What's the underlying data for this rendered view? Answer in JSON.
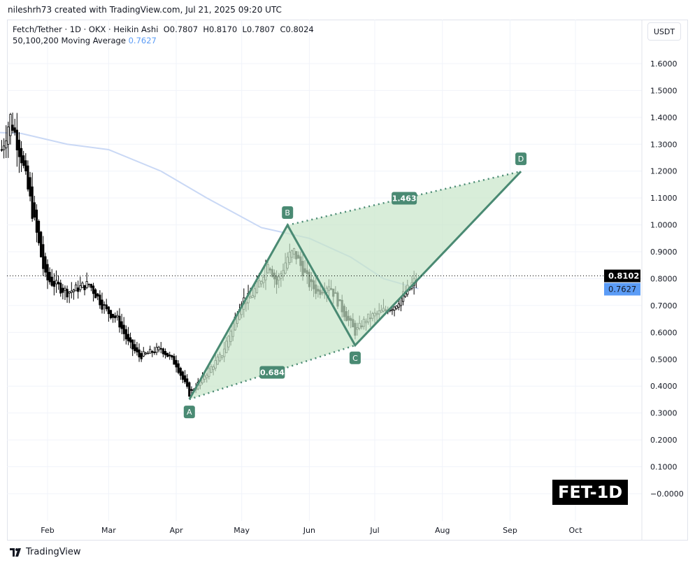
{
  "header": {
    "credit": "nileshrh73 created with TradingView.com, Jul 21, 2025 09:20 UTC"
  },
  "legend": {
    "symbol": "Fetch/Tether · 1D · OKX · Heikin Ashi  O0.7807  H0.8170  L0.7807  C0.8024",
    "ma_label": "50,100,200 Moving Average",
    "ma_value": "0.7627"
  },
  "axis": {
    "unit": "USDT"
  },
  "badge": "FET-1D",
  "footer": {
    "brand": "TradingView"
  },
  "colors": {
    "up": "#000000",
    "ma": "#c9d8f5",
    "pattern": "#4a8a73",
    "fill": "#c8e6c9",
    "ma_tag": "#5b9cf6"
  },
  "chart_data": {
    "type": "candlestick",
    "y_ticks": [
      "1.6000",
      "1.5000",
      "1.4000",
      "1.3000",
      "1.2000",
      "1.1000",
      "1.0000",
      "0.9000",
      "0.8000",
      "0.7000",
      "0.6000",
      "0.5000",
      "0.4000",
      "0.3000",
      "0.2000",
      "0.1000",
      "−0.0000"
    ],
    "y_tick_values": [
      1.6,
      1.5,
      1.4,
      1.3,
      1.2,
      1.1,
      1.0,
      0.9,
      0.8,
      0.7,
      0.6,
      0.5,
      0.4,
      0.3,
      0.2,
      0.1,
      0.0
    ],
    "x_ticks": [
      {
        "label": "Feb",
        "date": "2025-02-01"
      },
      {
        "label": "Mar",
        "date": "2025-03-01"
      },
      {
        "label": "Apr",
        "date": "2025-04-01"
      },
      {
        "label": "May",
        "date": "2025-05-01"
      },
      {
        "label": "Jun",
        "date": "2025-06-01"
      },
      {
        "label": "Jul",
        "date": "2025-07-01"
      },
      {
        "label": "Aug",
        "date": "2025-08-01"
      },
      {
        "label": "Sep",
        "date": "2025-09-01"
      },
      {
        "label": "Oct",
        "date": "2025-10-01"
      }
    ],
    "price_path": [
      [
        "2025-01-11",
        1.28
      ],
      [
        "2025-01-15",
        1.4
      ],
      [
        "2025-01-20",
        1.25
      ],
      [
        "2025-01-25",
        1.05
      ],
      [
        "2025-01-31",
        0.8
      ],
      [
        "2025-02-10",
        0.75
      ],
      [
        "2025-02-20",
        0.78
      ],
      [
        "2025-02-28",
        0.68
      ],
      [
        "2025-03-05",
        0.65
      ],
      [
        "2025-03-10",
        0.56
      ],
      [
        "2025-03-15",
        0.51
      ],
      [
        "2025-03-25",
        0.54
      ],
      [
        "2025-04-01",
        0.48
      ],
      [
        "2025-04-07",
        0.37
      ],
      [
        "2025-04-15",
        0.45
      ],
      [
        "2025-04-22",
        0.52
      ],
      [
        "2025-05-01",
        0.72
      ],
      [
        "2025-05-05",
        0.73
      ],
      [
        "2025-05-10",
        0.8
      ],
      [
        "2025-05-13",
        0.87
      ],
      [
        "2025-05-17",
        0.78
      ],
      [
        "2025-05-22",
        0.88
      ],
      [
        "2025-05-25",
        0.9
      ],
      [
        "2025-06-01",
        0.78
      ],
      [
        "2025-06-05",
        0.75
      ],
      [
        "2025-06-10",
        0.78
      ],
      [
        "2025-06-15",
        0.7
      ],
      [
        "2025-06-22",
        0.6
      ],
      [
        "2025-06-27",
        0.65
      ],
      [
        "2025-07-05",
        0.68
      ],
      [
        "2025-07-10",
        0.7
      ],
      [
        "2025-07-15",
        0.75
      ],
      [
        "2025-07-21",
        0.81
      ]
    ],
    "moving_average": [
      [
        "2025-01-05",
        1.345
      ],
      [
        "2025-01-20",
        1.34
      ],
      [
        "2025-02-10",
        1.3
      ],
      [
        "2025-03-01",
        1.28
      ],
      [
        "2025-03-25",
        1.2
      ],
      [
        "2025-04-15",
        1.1
      ],
      [
        "2025-05-10",
        0.99
      ],
      [
        "2025-06-01",
        0.95
      ],
      [
        "2025-06-20",
        0.88
      ],
      [
        "2025-07-05",
        0.8
      ],
      [
        "2025-07-21",
        0.7627
      ]
    ],
    "last_price": "0.8102",
    "ma_last": "0.7627",
    "harmonic": {
      "points": [
        {
          "label": "A",
          "date": "2025-04-07",
          "value": 0.351
        },
        {
          "label": "B",
          "date": "2025-05-22",
          "value": 0.999
        },
        {
          "label": "C",
          "date": "2025-06-22",
          "value": 0.552
        },
        {
          "label": "D",
          "date": "2025-09-06",
          "value": 1.199
        }
      ],
      "ratios": [
        {
          "label": "0.684",
          "from": "A",
          "to": "C"
        },
        {
          "label": "1.463",
          "from": "B",
          "to": "D"
        }
      ]
    }
  }
}
